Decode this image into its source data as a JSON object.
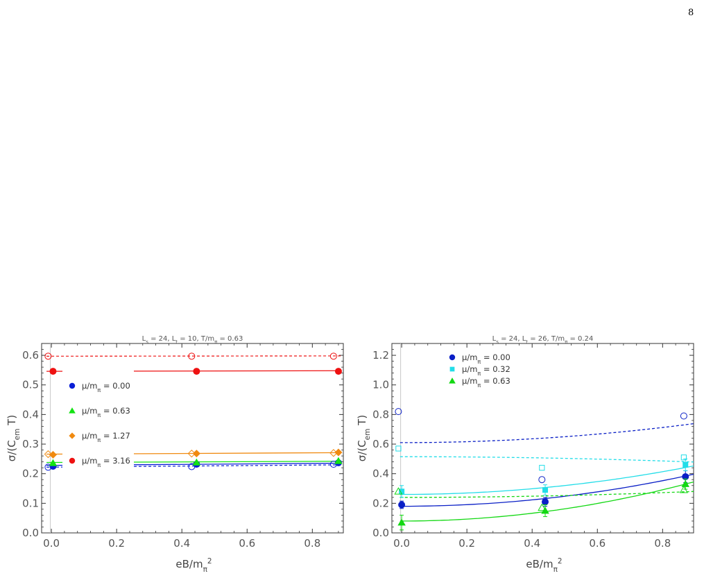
{
  "page": {
    "number": "8"
  },
  "chart_data": [
    {
      "type": "scatter",
      "title": "L_s = 24, L_t = 10, T/m_π = 0.63",
      "xlabel": "eB/m_π^2",
      "ylabel": "σ/(C_em T)",
      "xlim": [
        -0.03,
        0.895
      ],
      "ylim": [
        0.0,
        0.64
      ],
      "xticks": [
        0.0,
        0.2,
        0.4,
        0.6,
        0.8
      ],
      "xtick_labels": [
        "0.0",
        "0.2",
        "0.4",
        "0.6",
        "0.8"
      ],
      "yticks": [
        0.0,
        0.1,
        0.2,
        0.3,
        0.4,
        0.5,
        0.6
      ],
      "ytick_labels": [
        "0.0",
        "0.1",
        "0.2",
        "0.3",
        "0.4",
        "0.5",
        "0.6"
      ],
      "grid": false,
      "legend_position": "left-center",
      "series": [
        {
          "name": "μ/m_π = 0.00",
          "color": "#0a1fd6",
          "marker": "circle",
          "filled_points": [
            [
              0.005,
              0.225
            ],
            [
              0.445,
              0.232
            ],
            [
              0.88,
              0.237
            ]
          ],
          "open_points": [
            [
              -0.01,
              0.222
            ],
            [
              0.43,
              0.224
            ],
            [
              0.865,
              0.232
            ]
          ],
          "fit_solid": [
            0.228,
            0.2355
          ],
          "fit_dashed": [
            0.222,
            0.23
          ]
        },
        {
          "name": "μ/m_π = 0.63",
          "color": "#13e213",
          "marker": "triangle",
          "filled_points": [
            [
              0.005,
              0.236
            ],
            [
              0.445,
              0.238
            ],
            [
              0.88,
              0.243
            ]
          ],
          "open_points": [],
          "fit_solid": [
            0.238,
            0.242
          ],
          "fit_dashed": null
        },
        {
          "name": "μ/m_π = 1.27",
          "color": "#f08a10",
          "marker": "diamond",
          "filled_points": [
            [
              0.005,
              0.264
            ],
            [
              0.445,
              0.268
            ],
            [
              0.88,
              0.272
            ]
          ],
          "open_points": [
            [
              -0.01,
              0.266
            ],
            [
              0.43,
              0.268
            ],
            [
              0.865,
              0.27
            ]
          ],
          "fit_solid": [
            0.266,
            0.271
          ],
          "fit_dashed": null
        },
        {
          "name": "μ/m_π = 3.16",
          "color": "#ee1111",
          "marker": "circle",
          "filled_points": [
            [
              0.005,
              0.546
            ],
            [
              0.445,
              0.546
            ],
            [
              0.88,
              0.546
            ]
          ],
          "open_points": [
            [
              -0.01,
              0.597
            ],
            [
              0.43,
              0.597
            ],
            [
              0.865,
              0.597
            ]
          ],
          "fit_solid": [
            0.546,
            0.548
          ],
          "fit_dashed": [
            0.597,
            0.598
          ]
        }
      ]
    },
    {
      "type": "scatter",
      "title": "L_s = 24, L_t = 26, T/m_π = 0.24",
      "xlabel": "eB/m_π^2",
      "ylabel": "σ/(C_em T)",
      "xlim": [
        -0.03,
        0.895
      ],
      "ylim": [
        0.0,
        1.28
      ],
      "xticks": [
        0.0,
        0.2,
        0.4,
        0.6,
        0.8
      ],
      "xtick_labels": [
        "0.0",
        "0.2",
        "0.4",
        "0.6",
        "0.8"
      ],
      "yticks": [
        0.0,
        0.2,
        0.4,
        0.6,
        0.8,
        1.0,
        1.2
      ],
      "ytick_labels": [
        "0.0",
        "0.2",
        "0.4",
        "0.6",
        "0.8",
        "1.0",
        "1.2"
      ],
      "grid": false,
      "legend_position": "top-left",
      "series": [
        {
          "name": "μ/m_π = 0.00",
          "color": "#0a1fc6",
          "marker": "circle",
          "filled_points": [
            [
              0.0,
              0.19,
              0.025
            ],
            [
              0.44,
              0.21,
              0.03
            ],
            [
              0.87,
              0.38,
              0.04
            ]
          ],
          "open_points": [
            [
              -0.01,
              0.82
            ],
            [
              0.43,
              0.36
            ],
            [
              0.865,
              0.79
            ]
          ],
          "fit_solid_quadratic": [
            0.18,
            0.0,
            0.27
          ],
          "fit_dashed_quadratic": [
            0.61,
            0.0,
            0.16
          ]
        },
        {
          "name": "μ/m_π = 0.32",
          "color": "#22dde8",
          "marker": "square",
          "filled_points": [
            [
              0.0,
              0.28,
              0.04
            ],
            [
              0.44,
              0.29,
              0.035
            ],
            [
              0.87,
              0.46,
              0.04
            ]
          ],
          "open_points": [
            [
              -0.01,
              0.57
            ],
            [
              0.43,
              0.44
            ],
            [
              0.865,
              0.51
            ]
          ],
          "fit_solid_quadratic": [
            0.26,
            0.0,
            0.24
          ],
          "fit_dashed_quadratic": [
            0.515,
            0.0,
            -0.045
          ]
        },
        {
          "name": "μ/m_π = 0.63",
          "color": "#12d812",
          "marker": "triangle",
          "filled_points": [
            [
              0.0,
              0.07,
              0.05
            ],
            [
              0.44,
              0.15,
              0.04
            ],
            [
              0.87,
              0.33,
              0.035
            ]
          ],
          "open_points": [
            [
              -0.01,
              0.28
            ],
            [
              0.43,
              0.17
            ],
            [
              0.865,
              0.29
            ]
          ],
          "fit_solid_quadratic": [
            0.08,
            0.0,
            0.33
          ],
          "fit_dashed_quadratic": [
            0.24,
            0.0,
            0.05
          ]
        }
      ]
    }
  ]
}
